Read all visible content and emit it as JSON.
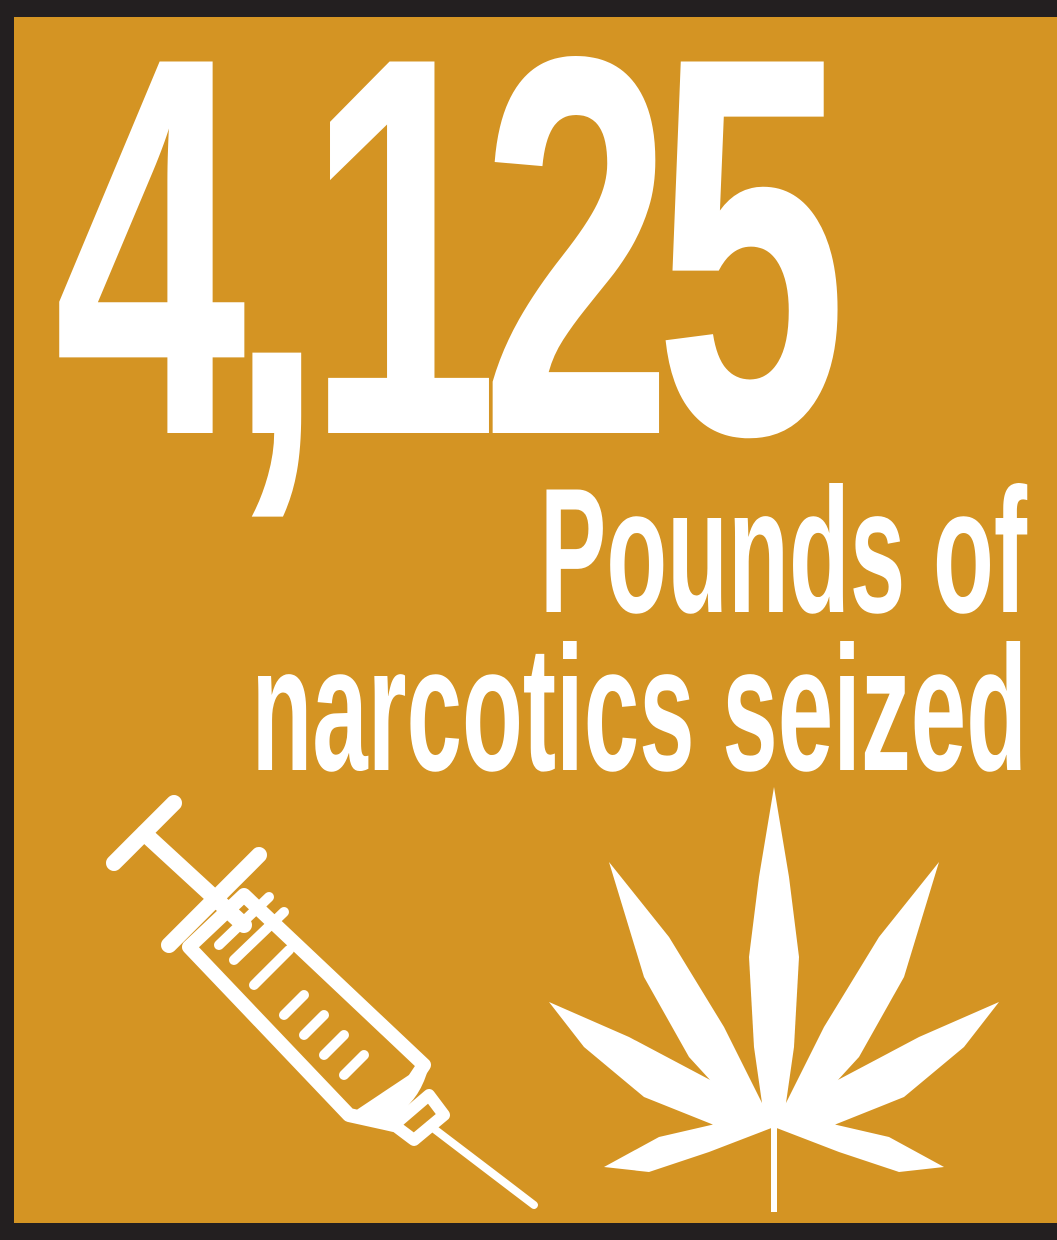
{
  "stat": {
    "number": "4,125",
    "caption_line1": "Pounds of",
    "caption_line2": "narcotics seized"
  },
  "colors": {
    "background": "#d49423",
    "border": "#231f20",
    "foreground": "#ffffff"
  },
  "icons": [
    "syringe-icon",
    "cannabis-leaf-icon"
  ]
}
